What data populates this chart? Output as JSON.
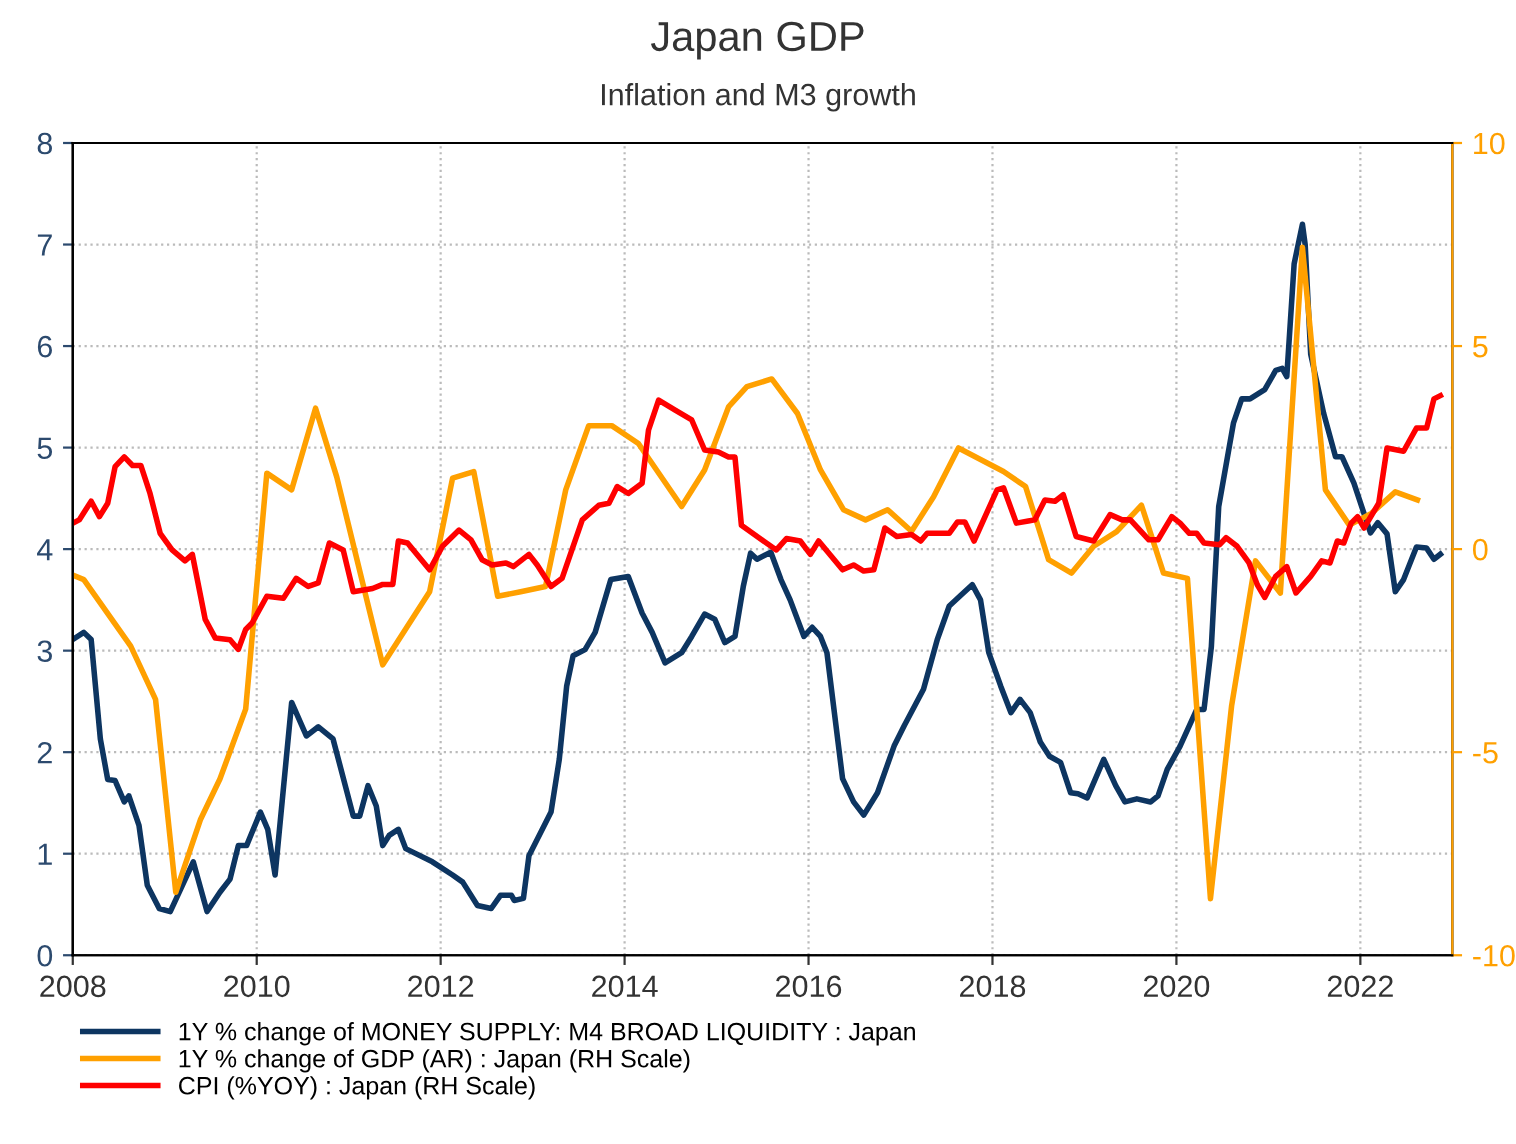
{
  "chart_data": {
    "type": "line",
    "title": "Japan GDP",
    "subtitle": "Inflation and M3 growth",
    "xlim": [
      2008,
      2023
    ],
    "xticks": [
      2008,
      2010,
      2012,
      2014,
      2016,
      2018,
      2020,
      2022
    ],
    "ylim": [
      0,
      8
    ],
    "yticks": [
      0,
      1,
      2,
      3,
      4,
      5,
      6,
      7,
      8
    ],
    "y2lim": [
      -10,
      10
    ],
    "y2ticks": [
      -10,
      -5,
      0,
      5,
      10
    ],
    "grid": true,
    "legend": "bottom",
    "line_style": "solid",
    "marker": "none",
    "series": [
      {
        "name": "1Y % change of MONEY SUPPLY: M4 BROAD LIQUIDITY : Japan",
        "color": "#0d3561",
        "axis": "y",
        "x": [
          2008.0,
          2008.12,
          2008.2,
          2008.3,
          2008.38,
          2008.46,
          2008.56,
          2008.61,
          2008.72,
          2008.81,
          2008.94,
          2009.06,
          2009.31,
          2009.46,
          2009.6,
          2009.71,
          2009.8,
          2009.89,
          2010.04,
          2010.12,
          2010.2,
          2010.38,
          2010.54,
          2010.67,
          2010.83,
          2011.05,
          2011.12,
          2011.21,
          2011.3,
          2011.37,
          2011.44,
          2011.54,
          2011.62,
          2011.91,
          2012.13,
          2012.24,
          2012.4,
          2012.55,
          2012.65,
          2012.77,
          2012.8,
          2012.9,
          2012.96,
          2013.2,
          2013.29,
          2013.37,
          2013.44,
          2013.57,
          2013.68,
          2013.85,
          2014.04,
          2014.19,
          2014.3,
          2014.44,
          2014.62,
          2014.73,
          2014.87,
          2014.98,
          2015.09,
          2015.2,
          2015.29,
          2015.37,
          2015.44,
          2015.59,
          2015.7,
          2015.8,
          2015.95,
          2016.04,
          2016.13,
          2016.2,
          2016.37,
          2016.49,
          2016.6,
          2016.75,
          2016.93,
          2017.04,
          2017.25,
          2017.4,
          2017.53,
          2017.65,
          2017.78,
          2017.87,
          2017.96,
          2018.09,
          2018.2,
          2018.3,
          2018.41,
          2018.52,
          2018.62,
          2018.74,
          2018.85,
          2018.93,
          2019.03,
          2019.21,
          2019.34,
          2019.44,
          2019.57,
          2019.72,
          2019.8,
          2019.9,
          2020.04,
          2020.22,
          2020.3,
          2020.38,
          2020.46,
          2020.62,
          2020.71,
          2020.8,
          2020.96,
          2021.08,
          2021.15,
          2021.2,
          2021.28,
          2021.37,
          2021.4,
          2021.46,
          2021.6,
          2021.73,
          2021.8,
          2021.93,
          2022.04,
          2022.11,
          2022.19,
          2022.29,
          2022.38,
          2022.47,
          2022.61,
          2022.72,
          2022.8,
          2022.87
        ],
        "values": [
          3.11,
          3.18,
          3.11,
          2.13,
          1.73,
          1.72,
          1.51,
          1.57,
          1.28,
          0.69,
          0.46,
          0.43,
          0.92,
          0.43,
          0.62,
          0.75,
          1.08,
          1.08,
          1.41,
          1.24,
          0.79,
          2.49,
          2.16,
          2.25,
          2.13,
          1.37,
          1.37,
          1.67,
          1.47,
          1.08,
          1.18,
          1.24,
          1.05,
          0.92,
          0.79,
          0.72,
          0.49,
          0.46,
          0.59,
          0.59,
          0.54,
          0.56,
          0.98,
          1.41,
          1.93,
          2.65,
          2.95,
          3.01,
          3.18,
          3.7,
          3.73,
          3.37,
          3.18,
          2.88,
          2.98,
          3.14,
          3.36,
          3.31,
          3.08,
          3.14,
          3.63,
          3.96,
          3.9,
          3.97,
          3.7,
          3.5,
          3.14,
          3.23,
          3.14,
          2.98,
          1.74,
          1.51,
          1.38,
          1.6,
          2.06,
          2.26,
          2.62,
          3.11,
          3.44,
          3.54,
          3.65,
          3.5,
          2.98,
          2.65,
          2.39,
          2.52,
          2.39,
          2.1,
          1.96,
          1.9,
          1.6,
          1.59,
          1.55,
          1.93,
          1.67,
          1.51,
          1.54,
          1.51,
          1.57,
          1.83,
          2.06,
          2.42,
          2.42,
          3.04,
          4.42,
          5.24,
          5.48,
          5.48,
          5.57,
          5.76,
          5.78,
          5.7,
          6.81,
          7.2,
          7.0,
          5.92,
          5.34,
          4.91,
          4.91,
          4.65,
          4.35,
          4.16,
          4.26,
          4.15,
          3.58,
          3.7,
          4.02,
          4.01,
          3.9,
          3.95
        ]
      },
      {
        "name": "1Y % change of GDP (AR) : Japan (RH Scale)",
        "color": "#ffa000",
        "axis": "y2",
        "x": [
          2008.0,
          2008.12,
          2008.63,
          2008.9,
          2009.12,
          2009.39,
          2009.6,
          2009.88,
          2010.11,
          2010.38,
          2010.64,
          2010.87,
          2011.37,
          2011.88,
          2012.13,
          2012.36,
          2012.62,
          2012.87,
          2013.14,
          2013.36,
          2013.61,
          2013.86,
          2014.15,
          2014.62,
          2014.87,
          2015.13,
          2015.33,
          2015.6,
          2015.88,
          2016.13,
          2016.38,
          2016.62,
          2016.86,
          2017.12,
          2017.36,
          2017.63,
          2018.12,
          2018.36,
          2018.61,
          2018.86,
          2019.1,
          2019.35,
          2019.62,
          2019.86,
          2020.12,
          2020.37,
          2020.6,
          2020.86,
          2021.13,
          2021.37,
          2021.62,
          2021.88,
          2022.12,
          2022.38,
          2022.62
        ],
        "values": [
          -0.64,
          -0.75,
          -2.39,
          -3.7,
          -8.45,
          -6.65,
          -5.66,
          -3.94,
          1.87,
          1.46,
          3.47,
          1.78,
          -2.85,
          -1.05,
          1.75,
          1.91,
          -1.16,
          -1.05,
          -0.92,
          1.46,
          3.04,
          3.04,
          2.6,
          1.05,
          1.95,
          3.5,
          4.0,
          4.19,
          3.34,
          1.95,
          0.97,
          0.72,
          0.97,
          0.44,
          1.29,
          2.49,
          1.91,
          1.54,
          -0.26,
          -0.59,
          0.07,
          0.43,
          1.08,
          -0.59,
          -0.72,
          -8.61,
          -3.86,
          -0.29,
          -1.08,
          7.43,
          1.46,
          0.59,
          0.88,
          1.41,
          1.21
        ]
      },
      {
        "name": "CPI (%YOY) : Japan (RH Scale)",
        "color": "#ff0000",
        "axis": "y2",
        "x": [
          2008.0,
          2008.07,
          2008.2,
          2008.29,
          2008.38,
          2008.46,
          2008.56,
          2008.65,
          2008.74,
          2008.84,
          2008.95,
          2009.08,
          2009.22,
          2009.3,
          2009.44,
          2009.55,
          2009.71,
          2009.8,
          2009.88,
          2009.95,
          2010.11,
          2010.29,
          2010.43,
          2010.56,
          2010.67,
          2010.79,
          2010.94,
          2011.05,
          2011.26,
          2011.37,
          2011.48,
          2011.54,
          2011.64,
          2011.88,
          2012.02,
          2012.2,
          2012.33,
          2012.45,
          2012.56,
          2012.71,
          2012.79,
          2012.96,
          2013.05,
          2013.2,
          2013.32,
          2013.54,
          2013.72,
          2013.83,
          2013.92,
          2014.04,
          2014.19,
          2014.26,
          2014.37,
          2014.55,
          2014.73,
          2014.87,
          2015.02,
          2015.13,
          2015.2,
          2015.27,
          2015.51,
          2015.65,
          2015.76,
          2015.91,
          2016.02,
          2016.11,
          2016.37,
          2016.49,
          2016.6,
          2016.71,
          2016.83,
          2016.96,
          2017.12,
          2017.22,
          2017.29,
          2017.53,
          2017.62,
          2017.7,
          2017.8,
          2018.05,
          2018.12,
          2018.26,
          2018.39,
          2018.46,
          2018.57,
          2018.68,
          2018.77,
          2018.91,
          2019.1,
          2019.28,
          2019.41,
          2019.5,
          2019.7,
          2019.8,
          2019.95,
          2020.04,
          2020.14,
          2020.22,
          2020.3,
          2020.47,
          2020.54,
          2020.66,
          2020.79,
          2020.88,
          2020.96,
          2021.08,
          2021.2,
          2021.3,
          2021.46,
          2021.58,
          2021.67,
          2021.75,
          2021.82,
          2021.9,
          2021.97,
          2022.04,
          2022.2,
          2022.29,
          2022.47,
          2022.61,
          2022.72,
          2022.8,
          2022.87
        ],
        "values": [
          0.64,
          0.72,
          1.18,
          0.8,
          1.13,
          2.03,
          2.27,
          2.06,
          2.06,
          1.37,
          0.39,
          -0.02,
          -0.29,
          -0.13,
          -1.73,
          -2.19,
          -2.23,
          -2.47,
          -1.98,
          -1.82,
          -1.16,
          -1.21,
          -0.72,
          -0.92,
          -0.83,
          0.15,
          -0.02,
          -1.05,
          -0.97,
          -0.87,
          -0.87,
          0.2,
          0.15,
          -0.51,
          0.07,
          0.47,
          0.23,
          -0.26,
          -0.39,
          -0.34,
          -0.43,
          -0.13,
          -0.39,
          -0.92,
          -0.72,
          0.72,
          1.08,
          1.13,
          1.54,
          1.37,
          1.62,
          2.93,
          3.67,
          3.42,
          3.18,
          2.44,
          2.39,
          2.27,
          2.27,
          0.59,
          0.2,
          -0.02,
          0.26,
          0.2,
          -0.13,
          0.2,
          -0.51,
          -0.39,
          -0.54,
          -0.51,
          0.52,
          0.31,
          0.36,
          0.2,
          0.39,
          0.39,
          0.67,
          0.67,
          0.2,
          1.46,
          1.51,
          0.64,
          0.69,
          0.72,
          1.21,
          1.18,
          1.34,
          0.31,
          0.2,
          0.85,
          0.72,
          0.72,
          0.23,
          0.23,
          0.8,
          0.64,
          0.39,
          0.39,
          0.15,
          0.11,
          0.28,
          0.07,
          -0.34,
          -0.88,
          -1.19,
          -0.67,
          -0.43,
          -1.08,
          -0.67,
          -0.29,
          -0.34,
          0.2,
          0.15,
          0.64,
          0.8,
          0.52,
          1.13,
          2.49,
          2.41,
          2.98,
          2.98,
          3.7,
          3.78
        ]
      }
    ]
  }
}
